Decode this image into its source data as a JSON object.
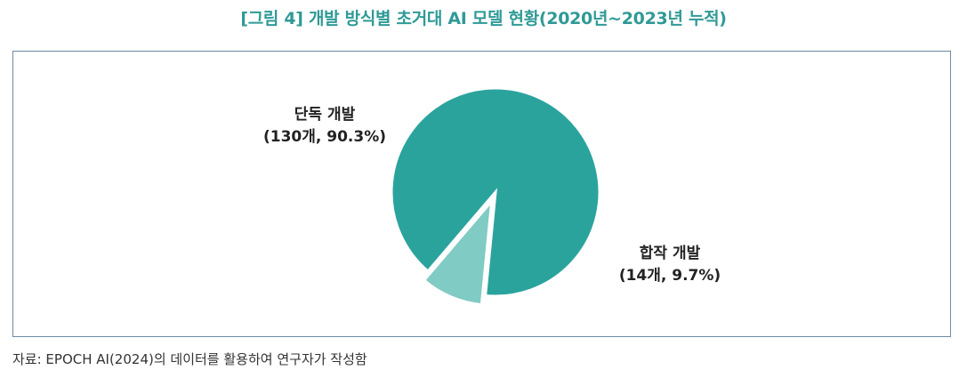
{
  "title": "[그림 4] 개발 방식별 초거대 AI 모델 현황(2020년~2023년 누적)",
  "source": "자료: EPOCH AI(2024)의 데이터를 활용하여 연구자가 작성함",
  "chart_data": {
    "type": "pie",
    "title": "[그림 4] 개발 방식별 초거대 AI 모델 현황(2020년~2023년 누적)",
    "slices": [
      {
        "name": "단독 개발",
        "count": 130,
        "percent": 90.3,
        "value_label": "(130개, 90.3%)",
        "color": "#2ba39d",
        "exploded": false
      },
      {
        "name": "합작 개발",
        "count": 14,
        "percent": 9.7,
        "value_label": "(14개, 9.7%)",
        "color": "#80cbc4",
        "exploded": true
      }
    ]
  }
}
